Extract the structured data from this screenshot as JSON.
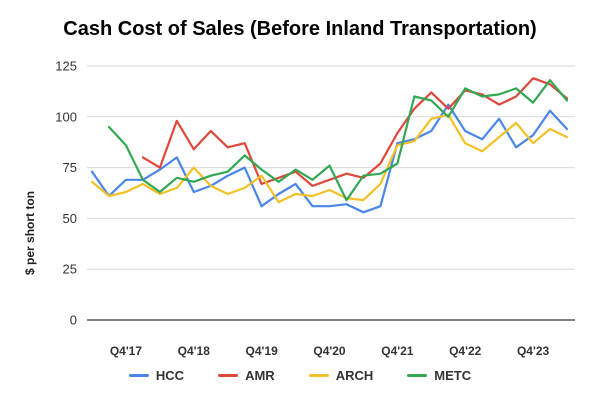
{
  "chart_data": {
    "type": "line",
    "title": "Cash Cost of Sales (Before Inland Transportation)",
    "xlabel": "",
    "ylabel": "$ per short ton",
    "ylim": [
      0,
      125
    ],
    "yticks": [
      0,
      25,
      50,
      75,
      100,
      125
    ],
    "x": [
      "Q2'17",
      "Q3'17",
      "Q4'17",
      "Q1'18",
      "Q2'18",
      "Q3'18",
      "Q4'18",
      "Q1'19",
      "Q2'19",
      "Q3'19",
      "Q4'19",
      "Q1'20",
      "Q2'20",
      "Q3'20",
      "Q4'20",
      "Q1'21",
      "Q2'21",
      "Q3'21",
      "Q4'21",
      "Q1'22",
      "Q2'22",
      "Q3'22",
      "Q4'22",
      "Q1'23",
      "Q2'23",
      "Q3'23",
      "Q4'23",
      "Q1'24",
      "Q2'24"
    ],
    "x_tick_labels": [
      "Q4'17",
      "Q4'18",
      "Q4'19",
      "Q4'20",
      "Q4'21",
      "Q4'22",
      "Q4'23"
    ],
    "grid": true,
    "legend_position": "bottom",
    "series": [
      {
        "name": "HCC",
        "color": "#4a86e8",
        "values": [
          73,
          61,
          69,
          69,
          74,
          80,
          63,
          66,
          71,
          75,
          56,
          62,
          67,
          56,
          56,
          57,
          53,
          56,
          87,
          89,
          93,
          106,
          93,
          89,
          99,
          85,
          91,
          103,
          94
        ]
      },
      {
        "name": "AMR",
        "color": "#e0473b",
        "values": [
          null,
          null,
          null,
          80,
          75,
          98,
          84,
          93,
          85,
          87,
          67,
          70,
          73,
          66,
          69,
          72,
          70,
          77,
          92,
          104,
          112,
          104,
          113,
          111,
          106,
          110,
          119,
          116,
          109
        ]
      },
      {
        "name": "ARCH",
        "color": "#f4c028",
        "values": [
          68,
          61,
          63,
          67,
          62,
          65,
          75,
          66,
          62,
          65,
          71,
          58,
          62,
          61,
          64,
          60,
          59,
          67,
          86,
          88,
          99,
          101,
          87,
          83,
          90,
          97,
          87,
          94,
          90
        ]
      },
      {
        "name": "METC",
        "color": "#33a853",
        "values": [
          null,
          95,
          86,
          69,
          63,
          70,
          68,
          71,
          73,
          81,
          74,
          68,
          74,
          69,
          76,
          59,
          71,
          72,
          77,
          110,
          108,
          100,
          114,
          110,
          111,
          114,
          107,
          118,
          108
        ]
      }
    ]
  }
}
